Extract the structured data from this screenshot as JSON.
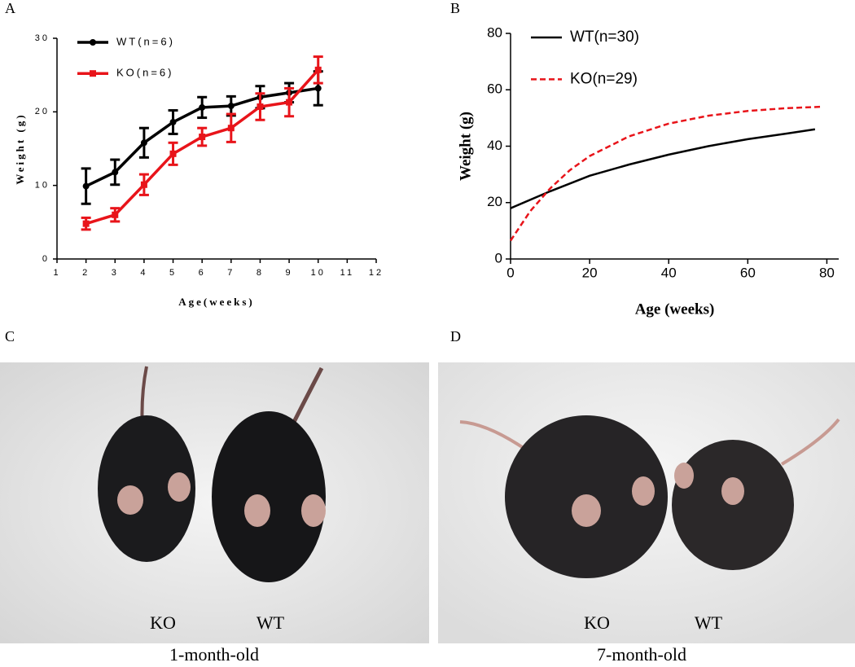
{
  "panels": [
    "A",
    "B",
    "C",
    "D"
  ],
  "chart_data": [
    {
      "type": "line",
      "x_label": "Age(weeks)",
      "y_label": "Weight (g)",
      "x": [
        2,
        3,
        4,
        5,
        6,
        7,
        8,
        9,
        10
      ],
      "xlim": [
        1,
        12
      ],
      "xticks": [
        1,
        2,
        3,
        4,
        5,
        6,
        7,
        8,
        9,
        10,
        11,
        12
      ],
      "ylim": [
        0,
        30
      ],
      "yticks": [
        0,
        10,
        20,
        30
      ],
      "legend": "upper left",
      "series": [
        {
          "name": "WT(n=6)",
          "color": "#000000",
          "marker": "circle",
          "values": [
            9.9,
            11.8,
            15.8,
            18.6,
            20.6,
            20.8,
            22,
            22.6,
            23.2
          ],
          "errors": [
            2.4,
            1.7,
            2.0,
            1.6,
            1.4,
            1.3,
            1.5,
            1.3,
            2.3
          ]
        },
        {
          "name": "KO(n=6)",
          "color": "#e8141a",
          "marker": "square",
          "values": [
            4.8,
            6.0,
            10.1,
            14.3,
            16.6,
            17.8,
            20.7,
            21.3,
            25.7
          ],
          "errors": [
            0.8,
            0.9,
            1.4,
            1.5,
            1.2,
            1.9,
            1.8,
            1.9,
            1.8
          ]
        }
      ]
    },
    {
      "type": "line",
      "x_label": "Age (weeks)",
      "y_label": "Weight (g)",
      "xlim": [
        0,
        83
      ],
      "xticks": [
        0,
        20,
        40,
        60,
        80
      ],
      "ylim": [
        0,
        80
      ],
      "yticks": [
        0,
        20,
        40,
        60,
        80
      ],
      "legend": "upper left",
      "series": [
        {
          "name": "WT(n=30)",
          "color": "#000000",
          "dash": false,
          "x": [
            0,
            10,
            20,
            30,
            40,
            50,
            60,
            70,
            77
          ],
          "values": [
            18,
            24,
            29.5,
            33.5,
            37,
            40,
            42.5,
            44.5,
            46
          ]
        },
        {
          "name": "KO(n=29)",
          "color": "#e8141a",
          "dash": true,
          "x": [
            0,
            5,
            10,
            15,
            20,
            30,
            40,
            50,
            60,
            70,
            79
          ],
          "values": [
            6.5,
            17,
            25,
            31.5,
            36.5,
            43.5,
            48,
            50.8,
            52.5,
            53.5,
            54
          ]
        }
      ]
    }
  ],
  "photos": [
    {
      "labels": [
        "KO",
        "WT"
      ],
      "caption": "1-month-old"
    },
    {
      "labels": [
        "KO",
        "WT"
      ],
      "caption": "7-month-old"
    }
  ]
}
